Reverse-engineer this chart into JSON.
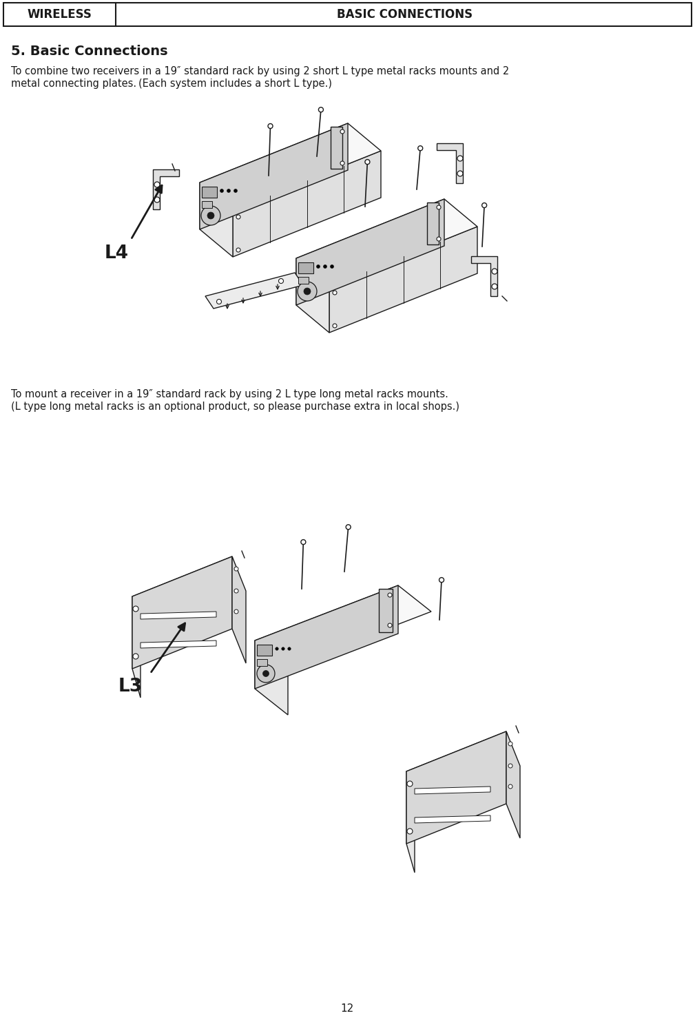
{
  "header_left": "WIRELESS",
  "header_right": "BASIC CONNECTIONS",
  "section_title": "5. Basic Connections",
  "para1_line1": "To combine two receivers in a 19″ standard rack by using 2 short L type metal racks mounts and 2",
  "para1_line2": "metal connecting plates. (Each system includes a short L type.)",
  "label_L4": "L4",
  "para2_line1": "To mount a receiver in a 19″ standard rack by using 2 L type long metal racks mounts.",
  "para2_line2": "(L type long metal racks is an optional product, so please purchase extra in local shops.)",
  "label_L3": "L3",
  "page_number": "12",
  "bg_color": "#ffffff",
  "lc": "#1a1a1a",
  "fc_top": "#f8f8f8",
  "fc_front": "#e8e8e8",
  "fc_side": "#d0d0d0",
  "fc_bracket": "#e0e0e0"
}
